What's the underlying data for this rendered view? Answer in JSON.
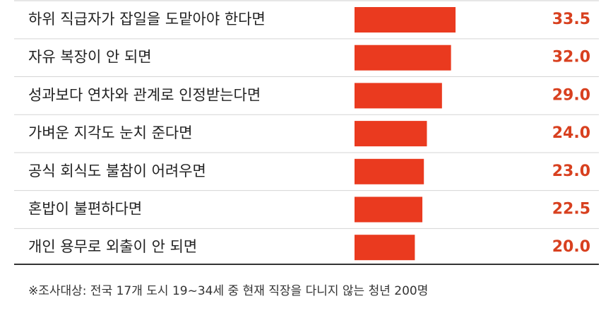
{
  "chart_data": {
    "type": "bar",
    "orientation": "horizontal",
    "categories": [
      "하위 직급자가 잡일을 도맡아야 한다면",
      "자유 복장이 안 되면",
      "성과보다 연차와 관계로 인정받는다면",
      "가벼운 지각도 눈치 준다면",
      "공식 회식도 불참이 어려우면",
      "혼밥이 불편하다면",
      "개인 용무로 외출이 안 되면"
    ],
    "values": [
      33.5,
      32.0,
      29.0,
      24.0,
      23.0,
      22.5,
      20.0
    ],
    "value_labels": [
      "33.5",
      "32.0",
      "29.0",
      "24.0",
      "23.0",
      "22.5",
      "20.0"
    ],
    "color": "#ea3a1f",
    "label_color": "#d8401f",
    "note": "※조사대상: 전국 17개 도시 19~34세 중 현재 직장을 다니지 않는 청년 200명"
  }
}
